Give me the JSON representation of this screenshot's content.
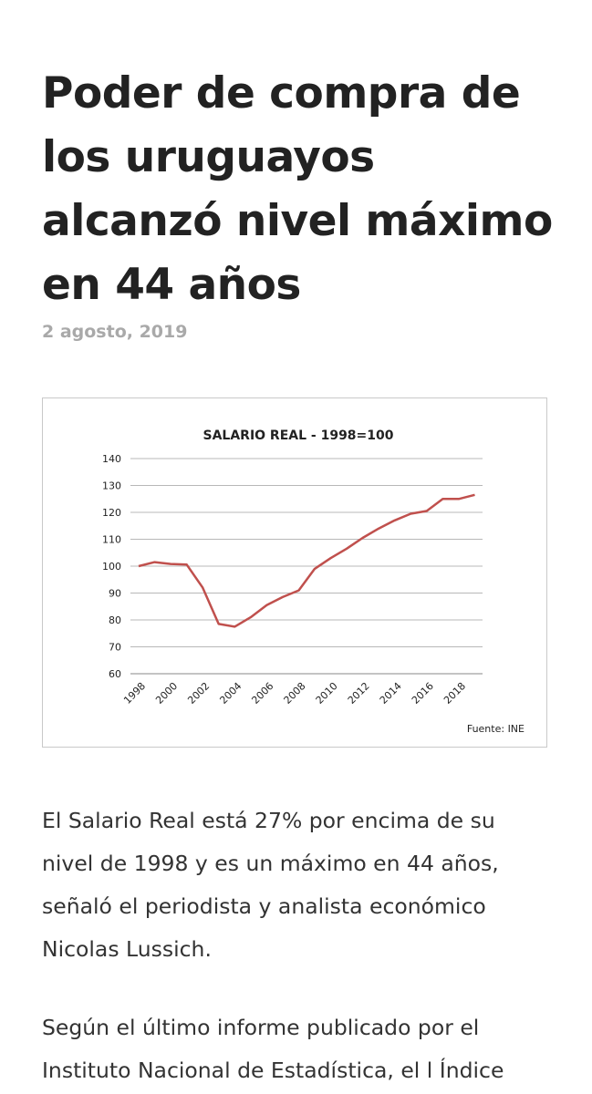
{
  "article": {
    "headline": "Poder de compra de los uruguayos alcanzó nivel máximo en 44 años",
    "date": "2 agosto, 2019",
    "paragraphs": [
      "El Salario Real está 27% por encima de su nivel de 1998 y es un máximo en 44 años, señaló el periodista y analista económico Nicolas Lussich.",
      "Según el último informe publicado por el Instituto Nacional de Estadística, el l Índice"
    ]
  },
  "chart_data": {
    "type": "line",
    "title": "SALARIO REAL - 1998=100",
    "source": "Fuente: INE",
    "xlabel": "",
    "ylabel": "",
    "x": [
      1998,
      1999,
      2000,
      2001,
      2002,
      2003,
      2004,
      2005,
      2006,
      2007,
      2008,
      2009,
      2010,
      2011,
      2012,
      2013,
      2014,
      2015,
      2016,
      2017,
      2018,
      2019
    ],
    "x_tick_labels": [
      "1998",
      "2000",
      "2002",
      "2004",
      "2006",
      "2008",
      "2010",
      "2012",
      "2014",
      "2016",
      "2018"
    ],
    "y_tick_labels": [
      "140",
      "130",
      "120",
      "110",
      "100",
      "90",
      "80",
      "70",
      "60"
    ],
    "ylim": [
      60,
      140
    ],
    "grid": "horizontal",
    "series": [
      {
        "values": [
          100,
          101.5,
          100.8,
          100.6,
          92,
          78.5,
          77.5,
          81,
          85.5,
          88.5,
          91,
          99,
          103,
          106.5,
          110.5,
          114,
          117,
          119.5,
          120.5,
          125,
          125,
          126.5
        ],
        "color": "#c0504d"
      }
    ]
  }
}
